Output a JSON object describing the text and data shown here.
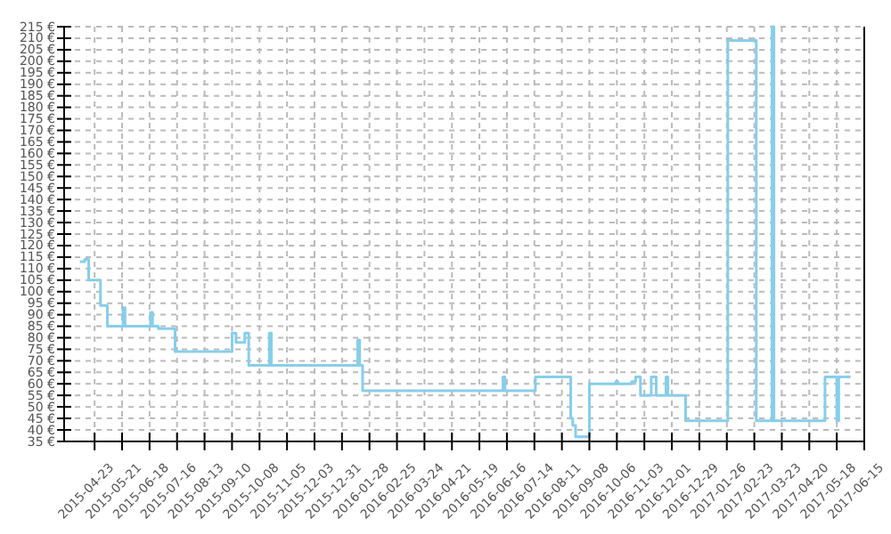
{
  "chart_data": {
    "type": "step",
    "color": "#87ceeb",
    "x": [
      "2015-04-08",
      "2015-04-13",
      "2015-04-17",
      "2015-04-29",
      "2015-05-06",
      "2015-05-22",
      "2015-05-24",
      "2015-06-19",
      "2015-06-21",
      "2015-06-27",
      "2015-07-14",
      "2015-09-10",
      "2015-09-14",
      "2015-09-23",
      "2015-09-27",
      "2015-10-18",
      "2015-10-20",
      "2016-01-16",
      "2016-01-18",
      "2016-01-21",
      "2016-06-12",
      "2016-06-14",
      "2016-07-15",
      "2016-08-20",
      "2016-08-22",
      "2016-08-25",
      "2016-09-08",
      "2016-10-05",
      "2016-10-07",
      "2016-10-21",
      "2016-10-25",
      "2016-10-30",
      "2016-11-10",
      "2016-11-15",
      "2016-11-25",
      "2016-11-27",
      "2016-12-15",
      "2017-01-27",
      "2017-02-25",
      "2017-03-13",
      "2017-03-15",
      "2017-05-06",
      "2017-05-18",
      "2017-05-20",
      "2017-06-01"
    ],
    "values": [
      113,
      114,
      105,
      94,
      85,
      93,
      85,
      91,
      85,
      84,
      74,
      82,
      78,
      82,
      68,
      82,
      68,
      79,
      68,
      57,
      63,
      57,
      63,
      45,
      42,
      37,
      60,
      61,
      60,
      61,
      63,
      55,
      63,
      55,
      63,
      55,
      44,
      209,
      44,
      215,
      44,
      63,
      44,
      63,
      63
    ],
    "xlim": [
      "2015-03-23",
      "2017-06-15"
    ],
    "xticks": [
      "2015-04-23",
      "2015-05-21",
      "2015-06-18",
      "2015-07-16",
      "2015-08-13",
      "2015-09-10",
      "2015-10-08",
      "2015-11-05",
      "2015-12-03",
      "2015-12-31",
      "2016-01-28",
      "2016-02-25",
      "2016-03-24",
      "2016-04-21",
      "2016-05-19",
      "2016-06-16",
      "2016-07-14",
      "2016-08-11",
      "2016-09-08",
      "2016-10-06",
      "2016-11-03",
      "2016-12-01",
      "2016-12-29",
      "2017-01-26",
      "2017-02-23",
      "2017-03-23",
      "2017-04-20",
      "2017-05-18",
      "2017-06-15"
    ],
    "ylim": [
      35,
      215
    ],
    "yticks": [
      {
        "value": 35,
        "label": "35 €"
      },
      {
        "value": 40,
        "label": "40 €"
      },
      {
        "value": 45,
        "label": "45 €"
      },
      {
        "value": 50,
        "label": "50 €"
      },
      {
        "value": 55,
        "label": "55 €"
      },
      {
        "value": 60,
        "label": "60 €"
      },
      {
        "value": 65,
        "label": "65 €"
      },
      {
        "value": 70,
        "label": "70 €"
      },
      {
        "value": 75,
        "label": "75 €"
      },
      {
        "value": 80,
        "label": "80 €"
      },
      {
        "value": 85,
        "label": "85 €"
      },
      {
        "value": 90,
        "label": "90 €"
      },
      {
        "value": 95,
        "label": "95 €"
      },
      {
        "value": 100,
        "label": "100 €"
      },
      {
        "value": 105,
        "label": "105 €"
      },
      {
        "value": 110,
        "label": "110 €"
      },
      {
        "value": 115,
        "label": "115 €"
      },
      {
        "value": 120,
        "label": "120 €"
      },
      {
        "value": 125,
        "label": "125 €"
      },
      {
        "value": 130,
        "label": "130 €"
      },
      {
        "value": 135,
        "label": "135 €"
      },
      {
        "value": 140,
        "label": "140 €"
      },
      {
        "value": 145,
        "label": "145 €"
      },
      {
        "value": 150,
        "label": "150 €"
      },
      {
        "value": 155,
        "label": "155 €"
      },
      {
        "value": 160,
        "label": "160 €"
      },
      {
        "value": 165,
        "label": "165 €"
      },
      {
        "value": 170,
        "label": "170 €"
      },
      {
        "value": 175,
        "label": "175 €"
      },
      {
        "value": 180,
        "label": "180 €"
      },
      {
        "value": 185,
        "label": "185 €"
      },
      {
        "value": 190,
        "label": "190 €"
      },
      {
        "value": 195,
        "label": "195 €"
      },
      {
        "value": 200,
        "label": "200 €"
      },
      {
        "value": 205,
        "label": "205 €"
      },
      {
        "value": 210,
        "label": "210 €"
      },
      {
        "value": 215,
        "label": "215 €"
      }
    ],
    "grid": true,
    "line_style": "solid"
  }
}
